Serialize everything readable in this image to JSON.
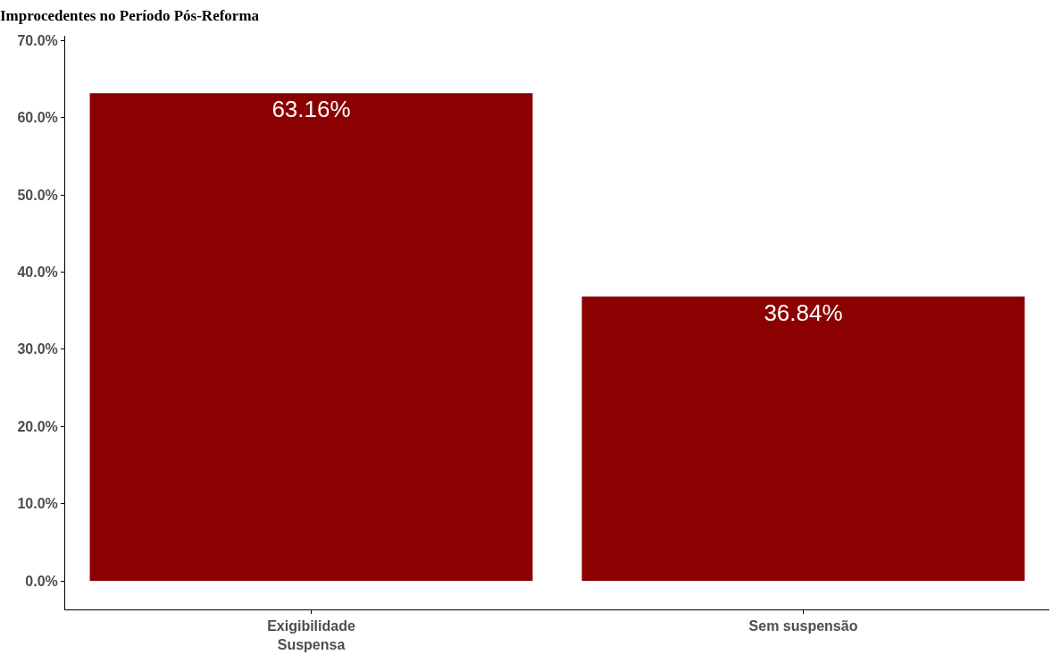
{
  "chart_data": {
    "type": "bar",
    "title": "Improcedentes no Período Pós-Reforma",
    "categories": [
      "Exigibilidade\nSuspensa",
      "Sem suspensão"
    ],
    "values": [
      63.16,
      36.84
    ],
    "color": "#8b0000",
    "value_labels": [
      "63.16%",
      "36.84%"
    ],
    "ylim": [
      -3.7,
      70.6
    ],
    "yticks": [
      {
        "value": 0,
        "label": "0.0%"
      },
      {
        "value": 10,
        "label": "10.0%"
      },
      {
        "value": 20,
        "label": "20.0%"
      },
      {
        "value": 30,
        "label": "30.0%"
      },
      {
        "value": 40,
        "label": "40.0%"
      },
      {
        "value": 50,
        "label": "50.0%"
      },
      {
        "value": 60,
        "label": "60.0%"
      },
      {
        "value": 70,
        "label": "70.0%"
      }
    ]
  }
}
